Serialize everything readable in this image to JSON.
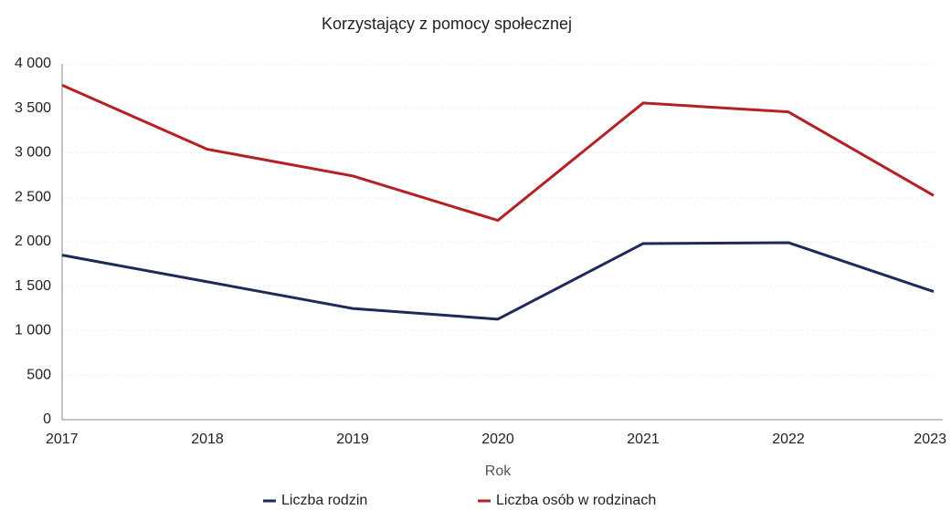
{
  "chart_data": {
    "type": "line",
    "title": "Korzystający z pomocy społecznej",
    "x_label": "Rok",
    "categories": [
      "2017",
      "2018",
      "2019",
      "2020",
      "2021",
      "2022",
      "2023"
    ],
    "series": [
      {
        "name": "Liczba rodzin",
        "color": "#1f2a5c",
        "values": [
          1850,
          1550,
          1250,
          1130,
          1980,
          1990,
          1440
        ]
      },
      {
        "name": "Liczba osób w rodzinach",
        "color": "#b52025",
        "values": [
          3760,
          3040,
          2740,
          2240,
          3560,
          3460,
          2520
        ]
      }
    ],
    "ylim": [
      0,
      4000
    ],
    "yticks": [
      0,
      500,
      {
        "value": 1000,
        "label": "1 000"
      },
      {
        "value": 1500,
        "label": "1 500"
      },
      {
        "value": 2000,
        "label": "2 000"
      },
      {
        "value": 2500,
        "label": "2 500"
      },
      {
        "value": 3000,
        "label": "3 000"
      },
      {
        "value": 3500,
        "label": "3 500"
      },
      {
        "value": 4000,
        "label": "4 000"
      }
    ],
    "grid": true,
    "legend": "bottom"
  }
}
